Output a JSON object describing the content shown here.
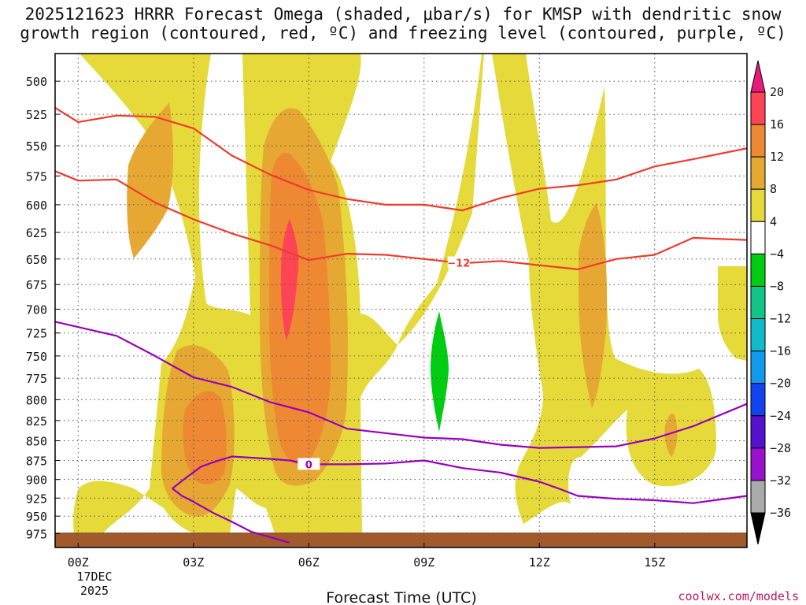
{
  "chart_data": {
    "type": "time-height contour plot",
    "title_lines": [
      "2025121623 HRRR Forecast Omega (shaded, μbar/s) for KMSP with dendritic snow",
      "growth region (contoured, red, ºC) and freezing level (contoured, purple, ºC)"
    ],
    "xlabel": "Forecast Time (UTC)",
    "x_ticks": [
      "00Z",
      "03Z",
      "06Z",
      "09Z",
      "12Z",
      "15Z"
    ],
    "x_tick_hours": [
      0,
      3,
      6,
      9,
      12,
      15
    ],
    "x_range_hours": [
      -0.6,
      17.4
    ],
    "date_lines": [
      "17DEC",
      "2025"
    ],
    "y_ticks": [
      500,
      525,
      550,
      575,
      600,
      625,
      650,
      675,
      700,
      725,
      750,
      775,
      800,
      825,
      850,
      875,
      900,
      925,
      950,
      975
    ],
    "y_axis": "pressure (hPa), log scale, inverted",
    "y_range": [
      480,
      995
    ],
    "colorbar": {
      "labels": [
        "20",
        "16",
        "12",
        "8",
        "4",
        "−4",
        "−8",
        "−12",
        "−16",
        "−20",
        "−24",
        "−28",
        "−32",
        "−36"
      ],
      "colors": [
        "#ff4455",
        "#ee8833",
        "#e6a833",
        "#e6d93a",
        "#ffffff",
        "#00cc11",
        "#11c488",
        "#11bbcc",
        "#1199ee",
        "#1144ee",
        "#5511cc",
        "#9911cc",
        "#aaaaaa"
      ],
      "top_arrow_color": "#e8197a",
      "bottom_arrow_color": "#000000"
    },
    "contours": [
      {
        "name": "dendritic-upper -12C",
        "color": "#ee3b2e",
        "points": [
          [
            -0.6,
            520
          ],
          [
            0,
            531
          ],
          [
            1,
            526
          ],
          [
            2,
            527
          ],
          [
            3,
            536
          ],
          [
            4,
            558
          ],
          [
            5,
            574
          ],
          [
            6,
            587
          ],
          [
            7,
            595
          ],
          [
            8,
            600
          ],
          [
            9,
            600
          ],
          [
            10,
            605
          ],
          [
            11,
            594
          ],
          [
            12,
            586
          ],
          [
            13,
            583
          ],
          [
            14,
            578
          ],
          [
            15,
            567
          ],
          [
            16,
            561
          ],
          [
            17.4,
            552
          ]
        ]
      },
      {
        "name": "dendritic-lower -12C",
        "color": "#ee3b2e",
        "label": "−12",
        "label_hour": 9.9,
        "points": [
          [
            -0.6,
            571
          ],
          [
            0,
            579
          ],
          [
            1,
            578
          ],
          [
            2,
            598
          ],
          [
            3,
            613
          ],
          [
            4,
            626
          ],
          [
            5,
            637
          ],
          [
            6,
            651
          ],
          [
            7,
            645
          ],
          [
            8,
            646
          ],
          [
            9,
            650
          ],
          [
            10,
            654
          ],
          [
            11,
            652
          ],
          [
            12,
            656
          ],
          [
            13,
            660
          ],
          [
            14,
            650
          ],
          [
            15,
            646
          ],
          [
            16,
            630
          ],
          [
            17.4,
            632
          ]
        ]
      },
      {
        "name": "freezing-level-upper 0C",
        "color": "#9900bb",
        "points": [
          [
            -0.6,
            713
          ],
          [
            1,
            728
          ],
          [
            2,
            750
          ],
          [
            3,
            774
          ],
          [
            4,
            785
          ],
          [
            5,
            803
          ],
          [
            6,
            815
          ],
          [
            7,
            835
          ],
          [
            9,
            846
          ],
          [
            10,
            848
          ],
          [
            11,
            855
          ],
          [
            12,
            859
          ],
          [
            13,
            858
          ],
          [
            14,
            857
          ],
          [
            15,
            847
          ],
          [
            16,
            832
          ],
          [
            17.4,
            805
          ]
        ]
      },
      {
        "name": "freezing-level-lower 0C",
        "color": "#9900bb",
        "label": "0",
        "label_hour": 6.0,
        "points": [
          [
            2.45,
            912
          ],
          [
            2.8,
            898
          ],
          [
            3.2,
            883
          ],
          [
            3.6,
            876
          ],
          [
            4,
            870
          ],
          [
            5,
            873
          ],
          [
            5.5,
            875
          ],
          [
            6,
            880
          ],
          [
            7,
            880
          ],
          [
            8,
            879
          ],
          [
            9,
            875
          ],
          [
            10,
            885
          ],
          [
            11,
            891
          ],
          [
            12,
            903
          ],
          [
            12.5,
            912
          ],
          [
            13,
            922
          ],
          [
            14,
            926
          ],
          [
            15,
            928
          ],
          [
            16,
            932
          ],
          [
            17.4,
            922
          ]
        ]
      },
      {
        "name": "freezing-level-loop 0C",
        "color": "#9900bb",
        "points": [
          [
            2.45,
            912
          ],
          [
            2.7,
            922
          ],
          [
            3,
            930
          ],
          [
            3.5,
            945
          ],
          [
            4,
            958
          ],
          [
            4.5,
            972
          ],
          [
            5.5,
            988
          ]
        ]
      }
    ]
  }
}
